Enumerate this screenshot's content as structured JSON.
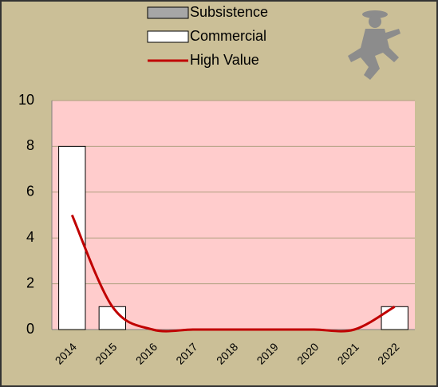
{
  "chart_data": {
    "type": "bar",
    "categories": [
      "2014",
      "2015",
      "2016",
      "2017",
      "2018",
      "2019",
      "2020",
      "2021",
      "2022"
    ],
    "series": [
      {
        "name": "Subsistence",
        "color": "#a6a6a6",
        "values": [
          0,
          0,
          0,
          0,
          0,
          0,
          0,
          0,
          0
        ]
      },
      {
        "name": "Commercial",
        "color": "#ffffff",
        "values": [
          8,
          1,
          0,
          0,
          0,
          0,
          0,
          0,
          1
        ]
      },
      {
        "name": "High Value",
        "color": "#c00000",
        "type": "line",
        "values": [
          5,
          1,
          0,
          0,
          0,
          0,
          0,
          0,
          1
        ]
      }
    ],
    "stacked": true,
    "ylim": [
      0,
      10
    ],
    "yticks": [
      0,
      2,
      4,
      6,
      8,
      10
    ],
    "grid": true,
    "plot_background": "#ffcccc"
  }
}
